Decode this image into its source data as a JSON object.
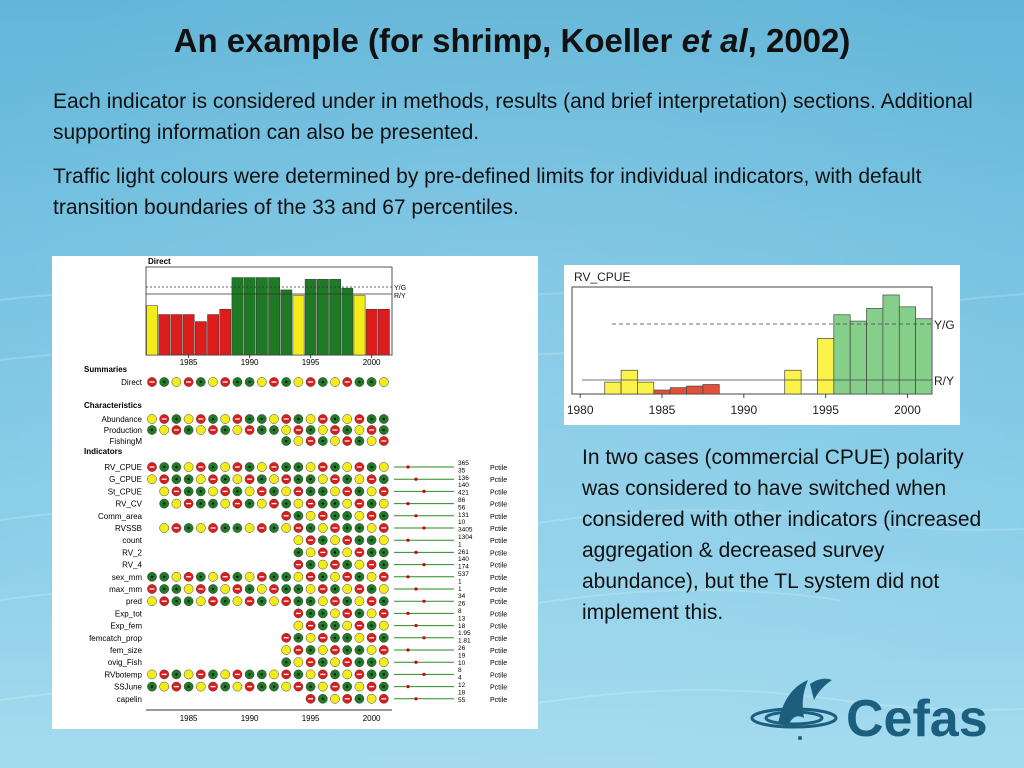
{
  "slide": {
    "title_prefix": "An example (for shrimp, Koeller ",
    "title_italic": "et al",
    "title_suffix": ", 2002)",
    "paragraph1": "Each indicator is considered under in methods, results (and brief interpretation) sections. Additional supporting information can also be presented.",
    "paragraph2": "Traffic light colours were determined by pre-defined limits for individual indicators, with default transition boundaries of the 33 and 67 percentiles.",
    "note": "In two cases (commercial CPUE) polarity was considered to have switched when considered with other indicators (increased aggregation & decreased survey abundance), but the TL system did not implement this.",
    "logo_text": "Cefas"
  },
  "colors": {
    "red": "#dd1c1c",
    "green": "#1f7a26",
    "yellow": "#f2ec1a",
    "light_red": "#e0503a",
    "light_green": "#86cf8a",
    "light_yellow": "#fbf34a",
    "logo": "#1c5e7e"
  },
  "chart_data": [
    {
      "type": "bar",
      "title": "Direct",
      "x": [
        1982,
        1983,
        1984,
        1985,
        1986,
        1987,
        1988,
        1989,
        1990,
        1991,
        1992,
        1993,
        1994,
        1995,
        1996,
        1997,
        1998,
        1999,
        2000,
        2001
      ],
      "status": [
        "Y",
        "R",
        "R",
        "R",
        "R",
        "R",
        "R",
        "G",
        "G",
        "G",
        "G",
        "G",
        "Y",
        "G",
        "G",
        "G",
        "G",
        "Y",
        "R",
        "R"
      ],
      "values": [
        0.56,
        0.46,
        0.46,
        0.46,
        0.38,
        0.46,
        0.52,
        0.88,
        0.88,
        0.88,
        0.88,
        0.74,
        0.68,
        0.86,
        0.86,
        0.86,
        0.76,
        0.68,
        0.52,
        0.52
      ],
      "threshold_labels": [
        "Y/G",
        "R/Y"
      ],
      "xticks": [
        1985,
        1990,
        1995,
        2000
      ]
    },
    {
      "type": "table",
      "sections": [
        "Summaries",
        "Characteristics",
        "Indicators"
      ],
      "summary_rows": [
        "Direct"
      ],
      "characteristic_rows": [
        "Abundance",
        "Production",
        "FishingM"
      ],
      "indicator_rows": [
        "RV_CPUE",
        "G_CPUE",
        "St_CPUE",
        "RV_CV",
        "Comm_area",
        "RVSSB",
        "count",
        "RV_2",
        "RV_4",
        "sex_mm",
        "max_mm",
        "pred",
        "Exp_tot",
        "Exp_fem",
        "femcatch_prop",
        "fem_size",
        "ovig_Fish",
        "RVbotemp",
        "SSJune",
        "capelin"
      ],
      "n_numbers": [
        "365",
        "35",
        "136",
        "140",
        "421",
        "86",
        "56",
        "131",
        "10",
        "3405",
        "1304",
        "1",
        "261",
        "140",
        "174",
        "537",
        "1",
        "1",
        "34",
        "26",
        "8",
        "13",
        "18",
        "1.95",
        "1.81",
        "26",
        "19",
        "10",
        "8",
        "4",
        "12",
        "18",
        "55"
      ],
      "stat_label": "Pctile",
      "xticks": [
        1985,
        1990,
        1995,
        2000
      ]
    },
    {
      "type": "bar",
      "title": "RV_CPUE",
      "x": [
        1980,
        1981,
        1982,
        1983,
        1984,
        1985,
        1986,
        1987,
        1988,
        1989,
        1990,
        1991,
        1992,
        1993,
        1994,
        1995,
        1996,
        1997,
        1998,
        1999,
        2000,
        2001
      ],
      "values": [
        null,
        null,
        0.15,
        0.3,
        0.15,
        0.05,
        0.08,
        0.1,
        0.12,
        null,
        null,
        null,
        null,
        0.3,
        null,
        0.7,
        1.0,
        0.92,
        1.08,
        1.25,
        1.1,
        0.95
      ],
      "status": [
        "",
        "",
        "Y",
        "Y",
        "Y",
        "R",
        "R",
        "R",
        "R",
        "",
        "",
        "",
        "",
        "Y",
        "",
        "Y",
        "G",
        "G",
        "G",
        "G",
        "G",
        "G"
      ],
      "threshold_labels": [
        "Y/G",
        "R/Y"
      ],
      "xticks": [
        1980,
        1985,
        1990,
        1995,
        2000
      ]
    }
  ]
}
